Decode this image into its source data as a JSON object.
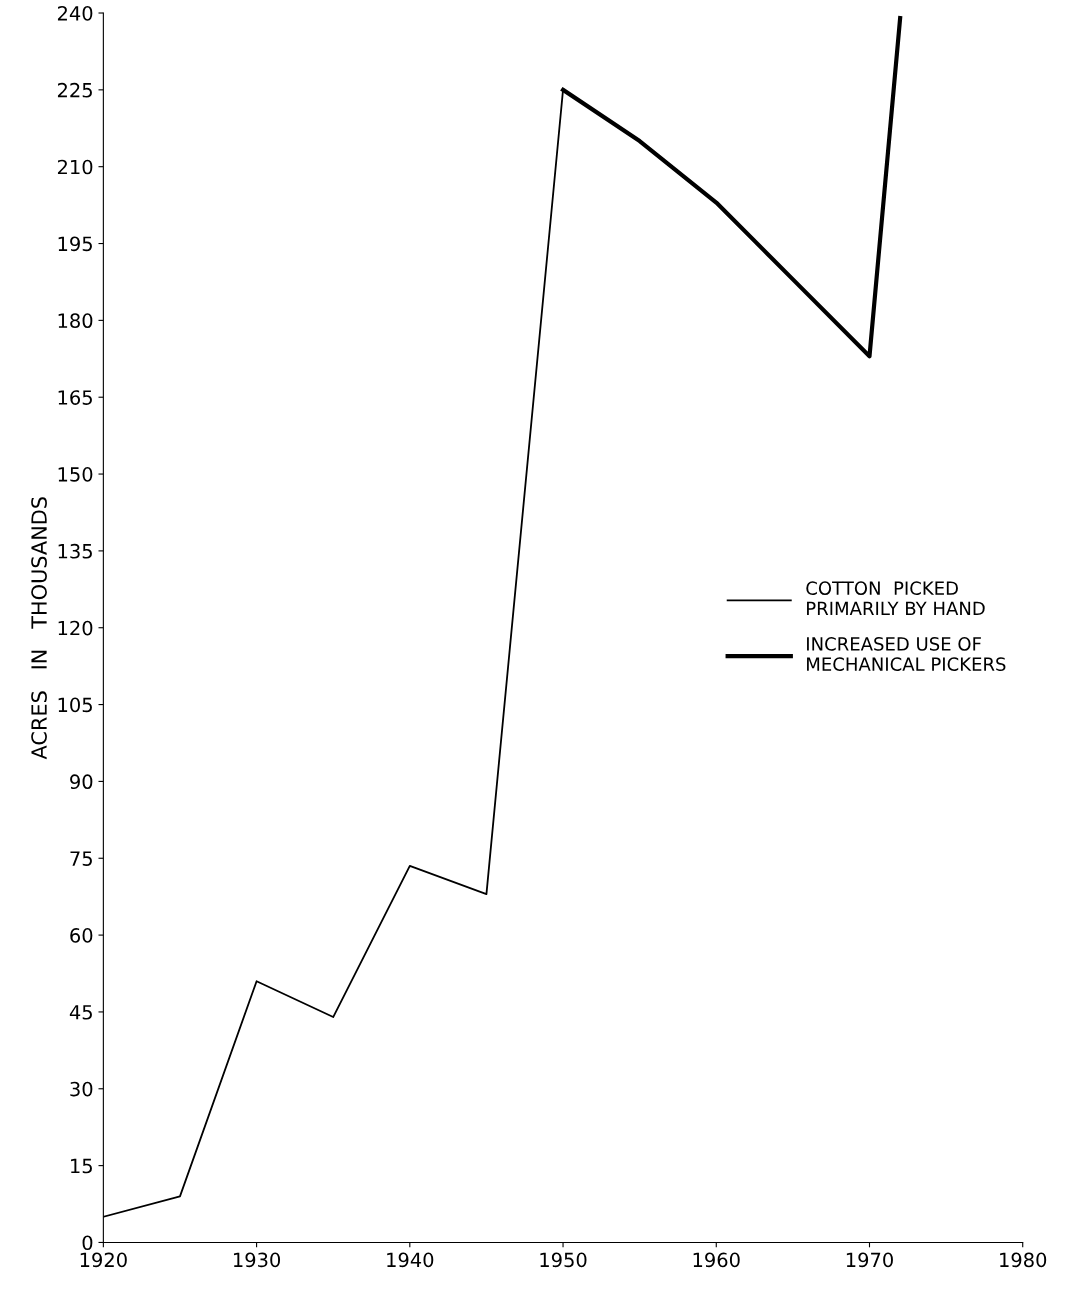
{
  "chart_data": {
    "type": "line",
    "ylabel": "ACRES   IN   THOUSANDS",
    "xlim": [
      1920,
      1980
    ],
    "xticks": [
      1920,
      1930,
      1940,
      1950,
      1960,
      1970,
      1980
    ],
    "ylim": [
      0,
      240
    ],
    "yticks": [
      0,
      15,
      30,
      45,
      60,
      75,
      90,
      105,
      120,
      135,
      150,
      165,
      180,
      195,
      210,
      225,
      240
    ],
    "grid": false,
    "legend": "right",
    "marker": "none",
    "line_style": "solid",
    "series": [
      {
        "name": "COTTON  PICKED\nPRIMARILY BY HAND",
        "color": "#000000",
        "x": [
          1920,
          1925,
          1930,
          1935,
          1940,
          1945,
          1950
        ],
        "values": [
          5,
          9,
          51,
          44,
          73.5,
          68,
          225
        ]
      },
      {
        "name": "INCREASED USE OF\nMECHANICAL PICKERS",
        "color": "#000000",
        "x": [
          1950,
          1955,
          1960,
          1965,
          1970,
          1972
        ],
        "values": [
          225,
          215,
          203,
          188,
          173,
          239
        ]
      }
    ]
  }
}
